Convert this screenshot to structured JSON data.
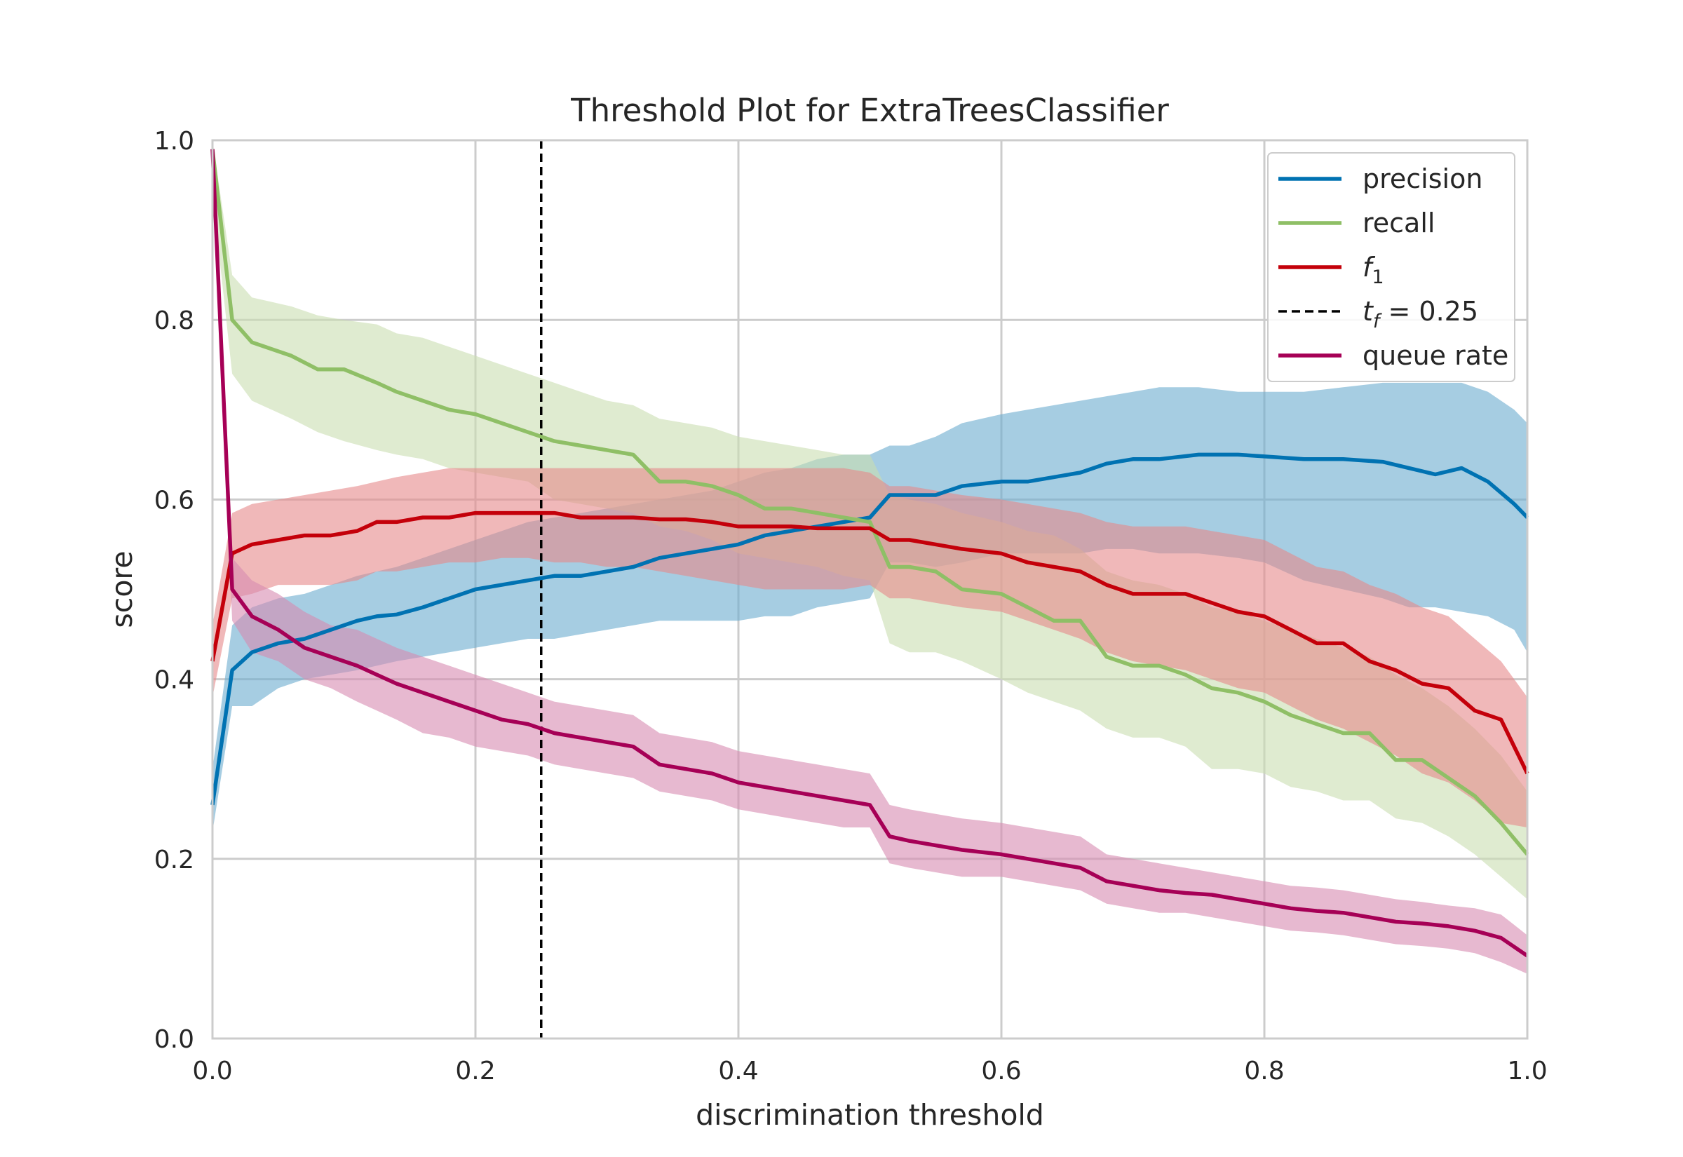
{
  "chart_data": {
    "type": "line",
    "title": "Threshold Plot for ExtraTreesClassifier",
    "xlabel": "discrimination threshold",
    "ylabel": "score",
    "xlim": [
      0.0,
      1.0
    ],
    "ylim": [
      0.0,
      1.0
    ],
    "xticks": [
      "0.0",
      "0.2",
      "0.4",
      "0.6",
      "0.8",
      "1.0"
    ],
    "yticks": [
      "0.0",
      "0.2",
      "0.4",
      "0.6",
      "0.8",
      "1.0"
    ],
    "grid": true,
    "legend_position": "top-right",
    "threshold": {
      "label": "t_f = 0.25",
      "label_main": "t",
      "label_sub": "f",
      "label_rest": " = 0.25",
      "value": 0.25,
      "color": "#000000"
    },
    "series": [
      {
        "name": "precision",
        "color": "#0072b2",
        "band_color": "#6aaccf",
        "x": [
          0,
          0.015,
          0.03,
          0.05,
          0.07,
          0.09,
          0.11,
          0.125,
          0.14,
          0.16,
          0.18,
          0.2,
          0.22,
          0.24,
          0.26,
          0.28,
          0.3,
          0.32,
          0.34,
          0.36,
          0.38,
          0.4,
          0.42,
          0.44,
          0.46,
          0.48,
          0.5,
          0.515,
          0.53,
          0.55,
          0.57,
          0.6,
          0.62,
          0.64,
          0.66,
          0.68,
          0.7,
          0.72,
          0.75,
          0.78,
          0.8,
          0.83,
          0.86,
          0.89,
          0.91,
          0.93,
          0.95,
          0.97,
          0.99,
          1.0
        ],
        "y": [
          0.26,
          0.41,
          0.43,
          0.44,
          0.445,
          0.455,
          0.465,
          0.47,
          0.472,
          0.48,
          0.49,
          0.5,
          0.505,
          0.51,
          0.515,
          0.515,
          0.52,
          0.525,
          0.535,
          0.54,
          0.545,
          0.55,
          0.56,
          0.565,
          0.57,
          0.575,
          0.58,
          0.605,
          0.605,
          0.605,
          0.615,
          0.62,
          0.62,
          0.625,
          0.63,
          0.64,
          0.645,
          0.645,
          0.65,
          0.65,
          0.648,
          0.645,
          0.645,
          0.642,
          0.635,
          0.628,
          0.635,
          0.62,
          0.595,
          0.58
        ],
        "lower": [
          0.23,
          0.37,
          0.37,
          0.39,
          0.4,
          0.405,
          0.41,
          0.415,
          0.42,
          0.425,
          0.43,
          0.435,
          0.44,
          0.445,
          0.445,
          0.45,
          0.455,
          0.46,
          0.465,
          0.465,
          0.465,
          0.465,
          0.47,
          0.47,
          0.48,
          0.485,
          0.49,
          0.53,
          0.53,
          0.525,
          0.53,
          0.54,
          0.54,
          0.54,
          0.54,
          0.545,
          0.545,
          0.54,
          0.54,
          0.535,
          0.53,
          0.51,
          0.5,
          0.49,
          0.48,
          0.48,
          0.475,
          0.47,
          0.455,
          0.43
        ],
        "upper": [
          0.3,
          0.46,
          0.48,
          0.49,
          0.495,
          0.505,
          0.515,
          0.52,
          0.525,
          0.535,
          0.545,
          0.555,
          0.565,
          0.575,
          0.58,
          0.585,
          0.59,
          0.595,
          0.6,
          0.605,
          0.61,
          0.62,
          0.63,
          0.635,
          0.645,
          0.65,
          0.65,
          0.66,
          0.66,
          0.67,
          0.685,
          0.695,
          0.7,
          0.705,
          0.71,
          0.715,
          0.72,
          0.725,
          0.725,
          0.72,
          0.72,
          0.72,
          0.725,
          0.73,
          0.73,
          0.73,
          0.73,
          0.72,
          0.7,
          0.685
        ]
      },
      {
        "name": "recall",
        "color": "#8fbf66",
        "band_color": "#c9deb0",
        "x": [
          0,
          0.015,
          0.03,
          0.06,
          0.08,
          0.1,
          0.125,
          0.14,
          0.16,
          0.18,
          0.2,
          0.22,
          0.24,
          0.26,
          0.28,
          0.3,
          0.32,
          0.34,
          0.36,
          0.38,
          0.4,
          0.42,
          0.44,
          0.46,
          0.48,
          0.5,
          0.515,
          0.53,
          0.55,
          0.57,
          0.6,
          0.62,
          0.64,
          0.66,
          0.68,
          0.7,
          0.72,
          0.74,
          0.76,
          0.78,
          0.8,
          0.82,
          0.84,
          0.86,
          0.88,
          0.9,
          0.92,
          0.94,
          0.96,
          0.98,
          1.0
        ],
        "y": [
          0.99,
          0.8,
          0.775,
          0.76,
          0.745,
          0.745,
          0.73,
          0.72,
          0.71,
          0.7,
          0.695,
          0.685,
          0.675,
          0.665,
          0.66,
          0.655,
          0.65,
          0.62,
          0.62,
          0.615,
          0.605,
          0.59,
          0.59,
          0.585,
          0.58,
          0.575,
          0.525,
          0.525,
          0.52,
          0.5,
          0.495,
          0.48,
          0.465,
          0.465,
          0.425,
          0.415,
          0.415,
          0.405,
          0.39,
          0.385,
          0.375,
          0.36,
          0.35,
          0.34,
          0.34,
          0.31,
          0.31,
          0.29,
          0.27,
          0.24,
          0.205
        ],
        "lower": [
          0.94,
          0.74,
          0.71,
          0.69,
          0.675,
          0.665,
          0.655,
          0.65,
          0.645,
          0.635,
          0.63,
          0.625,
          0.62,
          0.6,
          0.595,
          0.59,
          0.585,
          0.57,
          0.565,
          0.555,
          0.54,
          0.535,
          0.53,
          0.525,
          0.515,
          0.51,
          0.44,
          0.43,
          0.43,
          0.42,
          0.4,
          0.385,
          0.375,
          0.365,
          0.345,
          0.335,
          0.335,
          0.325,
          0.3,
          0.3,
          0.295,
          0.28,
          0.275,
          0.265,
          0.265,
          0.245,
          0.24,
          0.225,
          0.205,
          0.18,
          0.155
        ],
        "upper": [
          1.0,
          0.85,
          0.825,
          0.815,
          0.805,
          0.8,
          0.795,
          0.785,
          0.78,
          0.77,
          0.76,
          0.75,
          0.74,
          0.73,
          0.72,
          0.71,
          0.705,
          0.69,
          0.685,
          0.68,
          0.67,
          0.665,
          0.66,
          0.655,
          0.65,
          0.65,
          0.605,
          0.6,
          0.595,
          0.585,
          0.575,
          0.565,
          0.56,
          0.545,
          0.52,
          0.51,
          0.505,
          0.495,
          0.48,
          0.475,
          0.465,
          0.455,
          0.445,
          0.435,
          0.425,
          0.405,
          0.39,
          0.37,
          0.345,
          0.315,
          0.275
        ]
      },
      {
        "name": "f_1",
        "label_main": "f",
        "label_sub": "1",
        "color": "#c4000a",
        "band_color": "#e6888a",
        "x": [
          0,
          0.015,
          0.03,
          0.05,
          0.07,
          0.09,
          0.11,
          0.125,
          0.14,
          0.16,
          0.18,
          0.2,
          0.22,
          0.24,
          0.26,
          0.28,
          0.3,
          0.32,
          0.34,
          0.36,
          0.38,
          0.4,
          0.42,
          0.44,
          0.46,
          0.48,
          0.5,
          0.515,
          0.53,
          0.55,
          0.57,
          0.6,
          0.62,
          0.64,
          0.66,
          0.68,
          0.7,
          0.72,
          0.74,
          0.76,
          0.78,
          0.8,
          0.82,
          0.84,
          0.86,
          0.88,
          0.9,
          0.92,
          0.94,
          0.96,
          0.98,
          1.0
        ],
        "y": [
          0.42,
          0.54,
          0.55,
          0.555,
          0.56,
          0.56,
          0.565,
          0.575,
          0.575,
          0.58,
          0.58,
          0.585,
          0.585,
          0.585,
          0.585,
          0.58,
          0.58,
          0.58,
          0.578,
          0.578,
          0.575,
          0.57,
          0.57,
          0.57,
          0.568,
          0.568,
          0.568,
          0.555,
          0.555,
          0.55,
          0.545,
          0.54,
          0.53,
          0.525,
          0.52,
          0.505,
          0.495,
          0.495,
          0.495,
          0.485,
          0.475,
          0.47,
          0.455,
          0.44,
          0.44,
          0.42,
          0.41,
          0.395,
          0.39,
          0.365,
          0.355,
          0.295
        ],
        "lower": [
          0.38,
          0.49,
          0.495,
          0.505,
          0.505,
          0.505,
          0.51,
          0.52,
          0.52,
          0.525,
          0.53,
          0.53,
          0.535,
          0.535,
          0.53,
          0.53,
          0.525,
          0.525,
          0.52,
          0.515,
          0.51,
          0.505,
          0.5,
          0.5,
          0.5,
          0.5,
          0.505,
          0.49,
          0.49,
          0.485,
          0.48,
          0.475,
          0.465,
          0.455,
          0.445,
          0.43,
          0.42,
          0.415,
          0.41,
          0.4,
          0.39,
          0.385,
          0.37,
          0.355,
          0.345,
          0.33,
          0.315,
          0.295,
          0.285,
          0.265,
          0.24,
          0.235
        ],
        "upper": [
          0.46,
          0.585,
          0.595,
          0.6,
          0.605,
          0.61,
          0.615,
          0.62,
          0.625,
          0.63,
          0.635,
          0.635,
          0.635,
          0.635,
          0.635,
          0.635,
          0.635,
          0.635,
          0.635,
          0.635,
          0.635,
          0.635,
          0.635,
          0.635,
          0.635,
          0.635,
          0.63,
          0.615,
          0.615,
          0.61,
          0.605,
          0.6,
          0.595,
          0.59,
          0.585,
          0.575,
          0.57,
          0.57,
          0.57,
          0.565,
          0.56,
          0.555,
          0.54,
          0.525,
          0.52,
          0.505,
          0.495,
          0.48,
          0.47,
          0.445,
          0.42,
          0.38
        ]
      },
      {
        "name": "queue rate",
        "color": "#a60056",
        "band_color": "#d78ab1",
        "x": [
          0,
          0.015,
          0.03,
          0.05,
          0.07,
          0.09,
          0.11,
          0.125,
          0.14,
          0.16,
          0.18,
          0.2,
          0.22,
          0.24,
          0.26,
          0.28,
          0.3,
          0.32,
          0.34,
          0.36,
          0.38,
          0.4,
          0.42,
          0.44,
          0.46,
          0.48,
          0.5,
          0.515,
          0.53,
          0.55,
          0.57,
          0.6,
          0.62,
          0.64,
          0.66,
          0.68,
          0.7,
          0.72,
          0.74,
          0.76,
          0.78,
          0.8,
          0.82,
          0.84,
          0.86,
          0.88,
          0.9,
          0.92,
          0.94,
          0.96,
          0.98,
          1.0
        ],
        "y": [
          0.99,
          0.5,
          0.47,
          0.455,
          0.435,
          0.425,
          0.415,
          0.405,
          0.395,
          0.385,
          0.375,
          0.365,
          0.355,
          0.35,
          0.34,
          0.335,
          0.33,
          0.325,
          0.305,
          0.3,
          0.295,
          0.285,
          0.28,
          0.275,
          0.27,
          0.265,
          0.26,
          0.225,
          0.22,
          0.215,
          0.21,
          0.205,
          0.2,
          0.195,
          0.19,
          0.175,
          0.17,
          0.165,
          0.162,
          0.16,
          0.155,
          0.15,
          0.145,
          0.142,
          0.14,
          0.135,
          0.13,
          0.128,
          0.125,
          0.12,
          0.112,
          0.092
        ],
        "lower": [
          0.96,
          0.465,
          0.43,
          0.42,
          0.4,
          0.39,
          0.375,
          0.365,
          0.355,
          0.34,
          0.335,
          0.325,
          0.32,
          0.315,
          0.305,
          0.3,
          0.295,
          0.29,
          0.275,
          0.27,
          0.265,
          0.255,
          0.25,
          0.245,
          0.24,
          0.235,
          0.235,
          0.195,
          0.19,
          0.185,
          0.18,
          0.18,
          0.175,
          0.17,
          0.165,
          0.15,
          0.145,
          0.14,
          0.14,
          0.135,
          0.13,
          0.125,
          0.12,
          0.118,
          0.115,
          0.11,
          0.105,
          0.103,
          0.1,
          0.095,
          0.085,
          0.072
        ],
        "upper": [
          1.0,
          0.535,
          0.51,
          0.495,
          0.475,
          0.46,
          0.455,
          0.445,
          0.435,
          0.425,
          0.415,
          0.405,
          0.395,
          0.385,
          0.375,
          0.37,
          0.365,
          0.36,
          0.34,
          0.335,
          0.33,
          0.32,
          0.315,
          0.31,
          0.305,
          0.3,
          0.295,
          0.26,
          0.255,
          0.25,
          0.245,
          0.24,
          0.235,
          0.23,
          0.225,
          0.205,
          0.2,
          0.195,
          0.19,
          0.185,
          0.18,
          0.175,
          0.17,
          0.168,
          0.165,
          0.16,
          0.155,
          0.152,
          0.148,
          0.145,
          0.138,
          0.115
        ]
      }
    ]
  }
}
